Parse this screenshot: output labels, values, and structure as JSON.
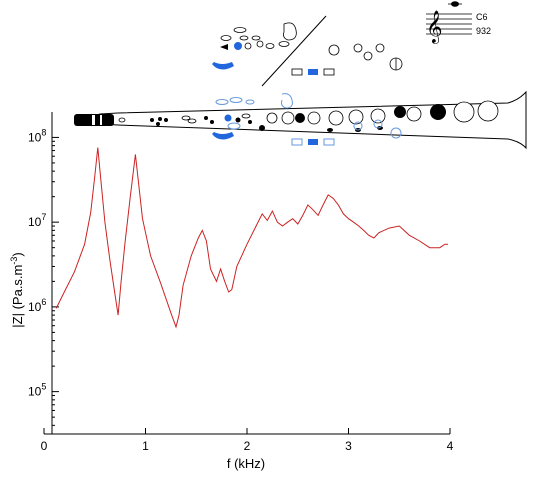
{
  "chart_data": {
    "type": "line",
    "title": "",
    "xlabel": "f (kHz)",
    "ylabel": "|Z| (Pa.s.m",
    "ylabel_sup": "-3",
    "ylabel_close": ")",
    "xlim": [
      0,
      4
    ],
    "ylim_log10": [
      4.5,
      8.3
    ],
    "y_scale": "log",
    "grid": false,
    "x_ticks": [
      {
        "value": 0,
        "label": "0"
      },
      {
        "value": 1,
        "label": "1"
      },
      {
        "value": 2,
        "label": "2"
      },
      {
        "value": 3,
        "label": "3"
      },
      {
        "value": 4,
        "label": "4"
      }
    ],
    "y_ticks": [
      {
        "exp": 5,
        "base": "10",
        "sup": "5"
      },
      {
        "exp": 6,
        "base": "10",
        "sup": "6"
      },
      {
        "exp": 7,
        "base": "10",
        "sup": "7"
      },
      {
        "exp": 8,
        "base": "10",
        "sup": "8"
      }
    ],
    "series": [
      {
        "color": "#cc2222",
        "x": [
          0.12,
          0.2,
          0.3,
          0.4,
          0.46,
          0.5,
          0.53,
          0.56,
          0.6,
          0.65,
          0.7,
          0.73,
          0.76,
          0.8,
          0.85,
          0.9,
          0.93,
          0.97,
          1.05,
          1.15,
          1.25,
          1.3,
          1.33,
          1.37,
          1.45,
          1.52,
          1.56,
          1.6,
          1.64,
          1.7,
          1.74,
          1.78,
          1.82,
          1.85,
          1.9,
          2.0,
          2.1,
          2.15,
          2.2,
          2.25,
          2.3,
          2.35,
          2.4,
          2.45,
          2.5,
          2.55,
          2.6,
          2.65,
          2.7,
          2.75,
          2.8,
          2.85,
          2.9,
          2.95,
          3.0,
          3.05,
          3.1,
          3.15,
          3.2,
          3.25,
          3.3,
          3.4,
          3.5,
          3.6,
          3.7,
          3.8,
          3.9,
          3.95,
          3.98
        ],
        "y": [
          960000.0,
          1500000.0,
          2600000.0,
          5500000.0,
          13000000.0,
          35000000.0,
          76000000.0,
          32000000.0,
          10000000.0,
          3500000.0,
          1400000.0,
          800000.0,
          2000000.0,
          6000000.0,
          20000000.0,
          63000000.0,
          30000000.0,
          11000000.0,
          4000000.0,
          1900000.0,
          850000.0,
          580000.0,
          800000.0,
          1800000.0,
          4000000.0,
          6500000.0,
          8000000.0,
          6000000.0,
          2800000.0,
          2000000.0,
          2800000.0,
          2000000.0,
          1500000.0,
          1600000.0,
          3000000.0,
          5500000.0,
          9500000.0,
          12500000.0,
          10500000.0,
          13500000.0,
          10000000.0,
          9000000.0,
          10000000.0,
          11000000.0,
          9500000.0,
          12000000.0,
          16000000.0,
          14000000.0,
          12000000.0,
          16000000.0,
          21000000.0,
          19000000.0,
          16000000.0,
          12500000.0,
          11000000.0,
          10000000.0,
          9000000.0,
          8000000.0,
          7000000.0,
          6500000.0,
          7500000.0,
          8500000.0,
          9000000.0,
          7000000.0,
          6000000.0,
          5000000.0,
          5000000.0,
          5500000.0,
          5500000.0
        ]
      }
    ],
    "annotations": [
      {
        "text": "C6"
      },
      {
        "text": "932"
      }
    ]
  },
  "colors": {
    "axis": "#000000",
    "line": "#cc2222",
    "key_blue": "#2266dd",
    "key_ghost": "#6699dd"
  }
}
